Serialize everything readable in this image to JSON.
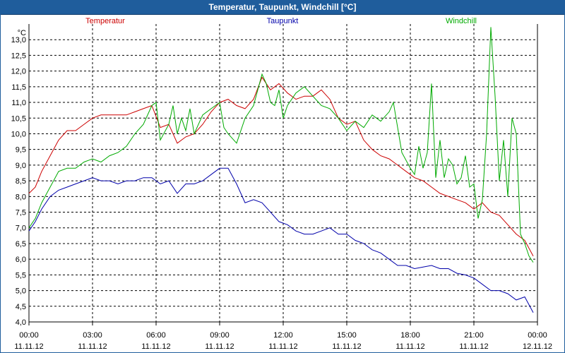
{
  "window": {
    "title": "Temperatur, Taupunkt, Windchill [°C]"
  },
  "chart_data": {
    "type": "line",
    "title": "Temperatur, Taupunkt, Windchill [°C]",
    "ylabel": "°C",
    "ylim": [
      4.0,
      13.5
    ],
    "yticks": [
      "4,0",
      "4,5",
      "5,0",
      "5,5",
      "6,0",
      "6,5",
      "7,0",
      "7,5",
      "8,0",
      "8,5",
      "9,0",
      "9,5",
      "10,0",
      "10,5",
      "11,0",
      "11,5",
      "12,0",
      "12,5",
      "13,0"
    ],
    "xlim": [
      0,
      24
    ],
    "xticks": [
      {
        "time": "00:00",
        "date": "11.11.12"
      },
      {
        "time": "03:00",
        "date": "11.11.12"
      },
      {
        "time": "06:00",
        "date": "11.11.12"
      },
      {
        "time": "09:00",
        "date": "11.11.12"
      },
      {
        "time": "12:00",
        "date": "11.11.12"
      },
      {
        "time": "15:00",
        "date": "11.11.12"
      },
      {
        "time": "18:00",
        "date": "11.11.12"
      },
      {
        "time": "21:00",
        "date": "11.11.12"
      },
      {
        "time": "00:00",
        "date": "12.11.12"
      }
    ],
    "grid": true,
    "legend": "top",
    "series": [
      {
        "name": "Temperatur",
        "color": "#cc0000",
        "x": [
          0,
          0.3,
          0.6,
          1.0,
          1.4,
          1.8,
          2.2,
          2.6,
          3.0,
          3.4,
          3.8,
          4.2,
          4.6,
          5.0,
          5.4,
          5.8,
          6.2,
          6.6,
          7.0,
          7.4,
          7.8,
          8.2,
          8.6,
          9.0,
          9.4,
          9.8,
          10.2,
          10.6,
          11.0,
          11.4,
          11.8,
          12.2,
          12.6,
          13.0,
          13.4,
          13.8,
          14.2,
          14.6,
          15.0,
          15.4,
          15.8,
          16.2,
          16.6,
          17.0,
          17.4,
          17.8,
          18.2,
          18.6,
          19.0,
          19.4,
          19.8,
          20.2,
          20.6,
          21.0,
          21.4,
          21.8,
          22.2,
          22.6,
          23.0,
          23.4,
          23.8
        ],
        "values": [
          8.1,
          8.3,
          8.8,
          9.3,
          9.8,
          10.1,
          10.1,
          10.3,
          10.5,
          10.6,
          10.6,
          10.6,
          10.6,
          10.7,
          10.8,
          10.9,
          10.2,
          10.3,
          9.7,
          9.9,
          10.0,
          10.3,
          10.7,
          11.0,
          11.1,
          10.9,
          10.8,
          11.1,
          11.8,
          11.4,
          11.6,
          11.3,
          11.1,
          11.2,
          11.2,
          11.4,
          11.1,
          10.5,
          10.3,
          10.4,
          9.8,
          9.5,
          9.3,
          9.2,
          9.0,
          8.8,
          8.6,
          8.5,
          8.3,
          8.1,
          8.0,
          7.9,
          7.8,
          7.6,
          7.8,
          7.5,
          7.4,
          7.1,
          6.8,
          6.6,
          6.1
        ]
      },
      {
        "name": "Taupunkt",
        "color": "#0000aa",
        "x": [
          0,
          0.3,
          0.6,
          1.0,
          1.4,
          1.8,
          2.2,
          2.6,
          3.0,
          3.4,
          3.8,
          4.2,
          4.6,
          5.0,
          5.4,
          5.8,
          6.2,
          6.6,
          7.0,
          7.4,
          7.8,
          8.2,
          8.6,
          9.0,
          9.4,
          9.8,
          10.2,
          10.6,
          11.0,
          11.4,
          11.8,
          12.2,
          12.6,
          13.0,
          13.4,
          13.8,
          14.2,
          14.6,
          15.0,
          15.4,
          15.8,
          16.2,
          16.6,
          17.0,
          17.4,
          17.8,
          18.2,
          18.6,
          19.0,
          19.4,
          19.8,
          20.2,
          20.6,
          21.0,
          21.4,
          21.8,
          22.2,
          22.6,
          23.0,
          23.4,
          23.8
        ],
        "values": [
          6.9,
          7.2,
          7.6,
          8.0,
          8.2,
          8.3,
          8.4,
          8.5,
          8.6,
          8.5,
          8.5,
          8.4,
          8.5,
          8.5,
          8.6,
          8.6,
          8.4,
          8.5,
          8.1,
          8.4,
          8.4,
          8.5,
          8.7,
          8.9,
          8.9,
          8.4,
          7.8,
          7.9,
          7.8,
          7.5,
          7.2,
          7.1,
          6.9,
          6.8,
          6.8,
          6.9,
          7.0,
          6.8,
          6.8,
          6.6,
          6.5,
          6.3,
          6.2,
          6.0,
          5.8,
          5.8,
          5.7,
          5.75,
          5.8,
          5.7,
          5.7,
          5.55,
          5.5,
          5.4,
          5.2,
          5.0,
          5.0,
          4.9,
          4.7,
          4.8,
          4.3
        ]
      },
      {
        "name": "Windchill",
        "color": "#00aa00",
        "x": [
          0,
          0.3,
          0.6,
          1.0,
          1.4,
          1.8,
          2.2,
          2.6,
          3.0,
          3.4,
          3.8,
          4.2,
          4.6,
          5.0,
          5.4,
          5.8,
          6.0,
          6.2,
          6.6,
          6.8,
          7.0,
          7.2,
          7.4,
          7.6,
          7.8,
          8.0,
          8.2,
          8.6,
          9.0,
          9.2,
          9.4,
          9.8,
          10.2,
          10.6,
          11.0,
          11.2,
          11.4,
          11.6,
          11.8,
          12.0,
          12.2,
          12.6,
          13.0,
          13.4,
          13.8,
          14.2,
          14.6,
          15.0,
          15.4,
          15.8,
          16.2,
          16.6,
          17.0,
          17.2,
          17.6,
          18.0,
          18.2,
          18.4,
          18.6,
          18.8,
          19.0,
          19.2,
          19.4,
          19.6,
          19.8,
          20.0,
          20.2,
          20.4,
          20.6,
          20.8,
          21.0,
          21.2,
          21.4,
          21.6,
          21.8,
          22.0,
          22.2,
          22.4,
          22.6,
          22.8,
          23.0,
          23.2,
          23.4,
          23.6,
          23.8
        ],
        "values": [
          7.0,
          7.3,
          7.8,
          8.3,
          8.8,
          8.9,
          8.9,
          9.1,
          9.2,
          9.1,
          9.3,
          9.4,
          9.6,
          10.0,
          10.3,
          10.9,
          11.0,
          9.8,
          10.3,
          10.9,
          10.0,
          10.5,
          10.1,
          10.8,
          10.0,
          10.3,
          10.6,
          10.8,
          11.0,
          10.2,
          10.0,
          9.7,
          10.5,
          10.9,
          11.9,
          11.6,
          11.0,
          10.9,
          11.4,
          10.5,
          10.9,
          11.3,
          11.5,
          11.2,
          10.9,
          10.8,
          10.5,
          10.1,
          10.4,
          10.2,
          10.6,
          10.4,
          10.7,
          11.0,
          9.4,
          8.9,
          8.7,
          9.6,
          8.9,
          9.4,
          11.6,
          8.6,
          9.8,
          8.6,
          9.2,
          9.0,
          8.4,
          8.6,
          9.3,
          8.3,
          8.4,
          7.3,
          7.9,
          10.0,
          13.4,
          11.2,
          8.5,
          9.8,
          8.0,
          10.5,
          10.0,
          6.8,
          6.5,
          6.1,
          5.9
        ]
      }
    ]
  }
}
